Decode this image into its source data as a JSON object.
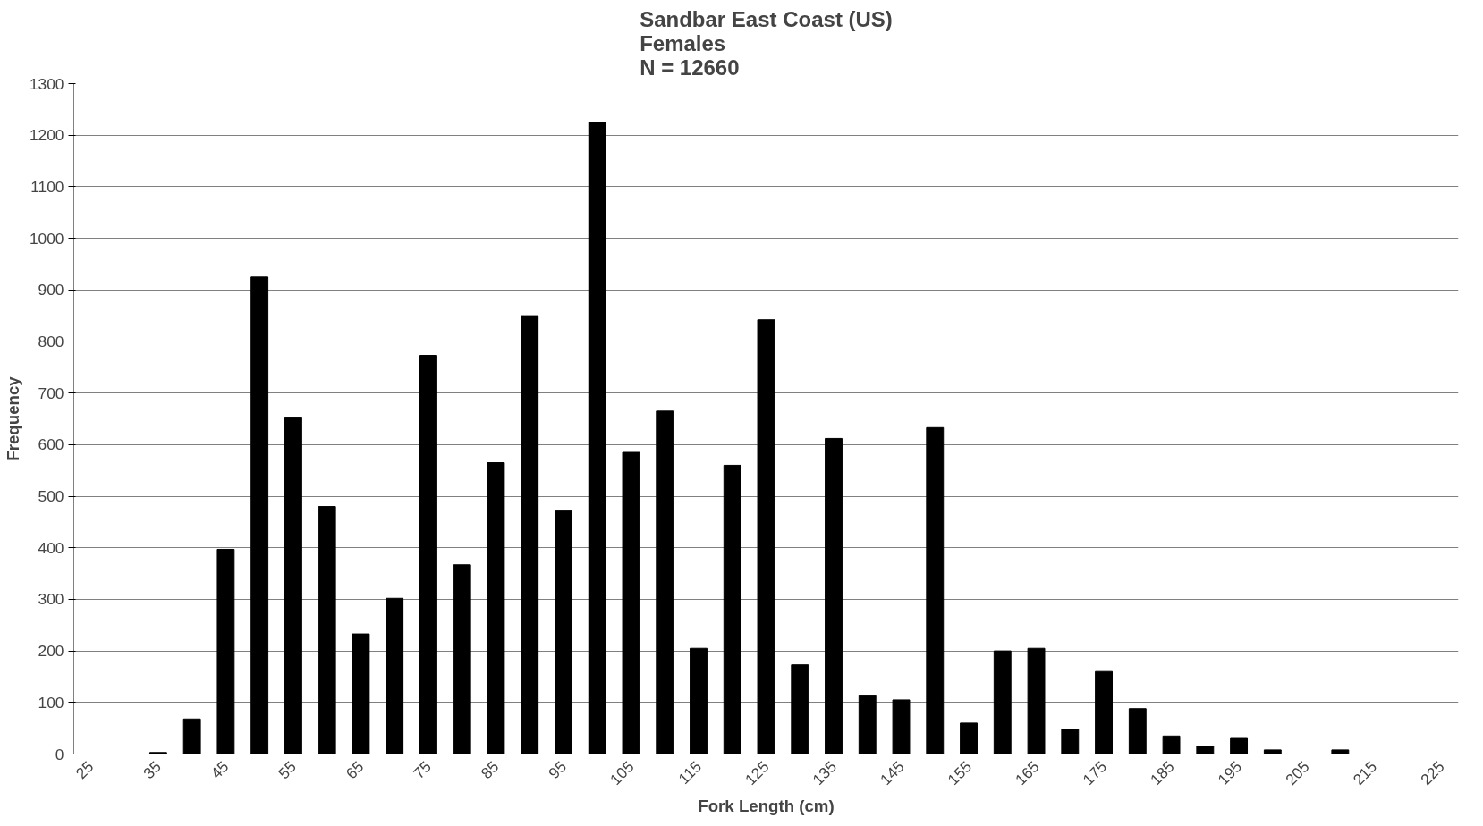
{
  "chart_data": {
    "type": "bar",
    "title": "Sandbar East Coast (US)\nFemales\nN = 12660",
    "xlabel": "Fork Length (cm)",
    "ylabel": "Frequency",
    "categories": [
      "25",
      null,
      "35",
      null,
      "45",
      null,
      "55",
      null,
      "65",
      null,
      "75",
      null,
      "85",
      null,
      "95",
      null,
      "105",
      null,
      "115",
      null,
      "125",
      null,
      "135",
      null,
      "145",
      null,
      "155",
      null,
      "165",
      null,
      "175",
      null,
      "185",
      null,
      "195",
      null,
      "205",
      null,
      "215",
      null,
      "225"
    ],
    "values": [
      0,
      0,
      3,
      68,
      397,
      925,
      652,
      480,
      233,
      302,
      773,
      367,
      565,
      850,
      472,
      1225,
      585,
      665,
      205,
      560,
      842,
      173,
      612,
      113,
      105,
      633,
      60,
      200,
      205,
      48,
      160,
      88,
      35,
      15,
      32,
      8,
      0,
      8,
      0,
      0,
      0
    ],
    "color": "#000000",
    "ylim": [
      0,
      1300
    ],
    "yticks": [
      0,
      100,
      200,
      300,
      400,
      500,
      600,
      700,
      800,
      900,
      1000,
      1100,
      1200,
      1300
    ],
    "grid": "y"
  }
}
